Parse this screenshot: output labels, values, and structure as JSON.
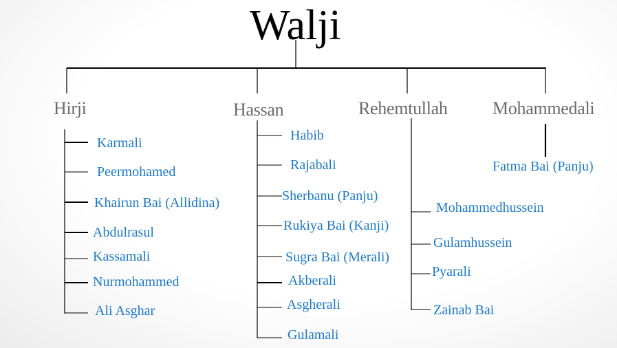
{
  "root": "Walji",
  "colors": {
    "line": "#000000",
    "generation2": "#6a6a6a",
    "children": "#1d7ac6"
  },
  "branches": [
    {
      "name": "Hirji",
      "children": [
        "Karmali",
        "Peermohamed",
        "Khairun Bai (Allidina)",
        "Abdulrasul",
        "Kassamali",
        "Nurmohammed",
        "Ali Asghar"
      ]
    },
    {
      "name": "Hassan",
      "children": [
        "Habib",
        "Rajabali",
        "Sherbanu (Panju)",
        "Rukiya Bai (Kanji)",
        "Sugra Bai (Merali)",
        "Akberali",
        "Asgherali",
        "Gulamali"
      ]
    },
    {
      "name": "Rehemtullah",
      "children": [
        "Mohammedhussein",
        "Gulamhussein",
        "Pyarali",
        "Zainab Bai"
      ]
    },
    {
      "name": "Mohammedali",
      "children": [
        "Fatma Bai (Panju)"
      ]
    }
  ]
}
